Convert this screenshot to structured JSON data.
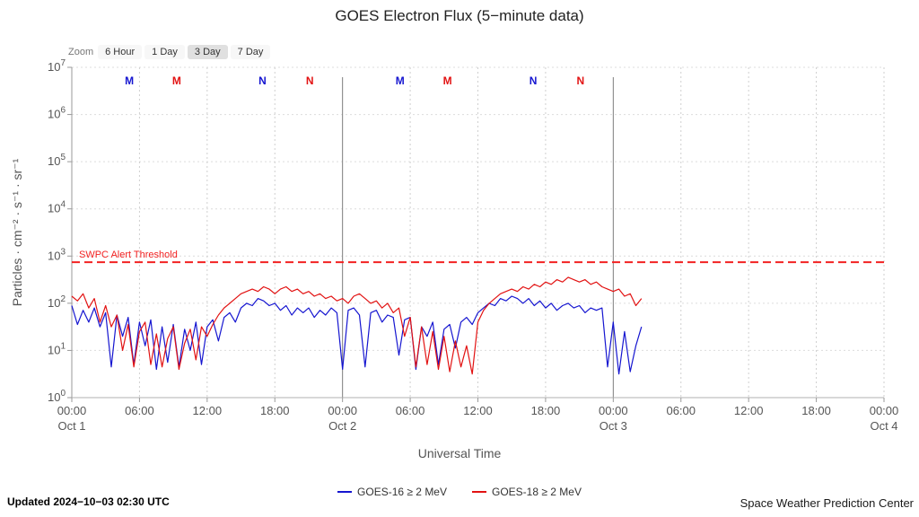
{
  "title": "GOES Electron Flux (5−minute data)",
  "zoom": {
    "label": "Zoom",
    "buttons": [
      "6 Hour",
      "1 Day",
      "3 Day",
      "7 Day"
    ],
    "active": "3 Day"
  },
  "footer": {
    "updated": "Updated 2024−10−03 02:30 UTC",
    "source": "Space Weather Prediction Center"
  },
  "chart_data": {
    "type": "line",
    "title": "GOES Electron Flux (5−minute data)",
    "xlabel": "Universal Time",
    "ylabel": "Particles · cm⁻² · s⁻¹ · sr⁻¹",
    "x_unit": "hours since Oct 1 00:00 UTC",
    "xlim": [
      0,
      72
    ],
    "ylog_range": [
      0,
      7
    ],
    "y_scale": "log10, labels are 10^exponent",
    "grid": true,
    "legend_position": "bottom-center",
    "x_ticks": [
      {
        "t": 0,
        "time": "00:00",
        "date": "Oct 1"
      },
      {
        "t": 6,
        "time": "06:00"
      },
      {
        "t": 12,
        "time": "12:00"
      },
      {
        "t": 18,
        "time": "18:00"
      },
      {
        "t": 24,
        "time": "00:00",
        "date": "Oct 2"
      },
      {
        "t": 30,
        "time": "06:00"
      },
      {
        "t": 36,
        "time": "12:00"
      },
      {
        "t": 42,
        "time": "18:00"
      },
      {
        "t": 48,
        "time": "00:00",
        "date": "Oct 3"
      },
      {
        "t": 54,
        "time": "06:00"
      },
      {
        "t": 60,
        "time": "12:00"
      },
      {
        "t": 66,
        "time": "18:00"
      },
      {
        "t": 72,
        "time": "00:00",
        "date": "Oct 4"
      }
    ],
    "y_tick_exponents": [
      0,
      1,
      2,
      3,
      4,
      5,
      6,
      7
    ],
    "day_lines_t": [
      24,
      48
    ],
    "threshold": {
      "label": "SWPC Alert Threshold",
      "log10_value": 2.87,
      "color": "#f22222"
    },
    "satellite_markers": [
      {
        "t": 5.1,
        "letter": "M",
        "series": "GOES-16",
        "color": "#1515d0"
      },
      {
        "t": 9.3,
        "letter": "M",
        "series": "GOES-18",
        "color": "#e21212"
      },
      {
        "t": 16.9,
        "letter": "N",
        "series": "GOES-16",
        "color": "#1515d0"
      },
      {
        "t": 21.1,
        "letter": "N",
        "series": "GOES-18",
        "color": "#e21212"
      },
      {
        "t": 29.1,
        "letter": "M",
        "series": "GOES-16",
        "color": "#1515d0"
      },
      {
        "t": 33.3,
        "letter": "M",
        "series": "GOES-18",
        "color": "#e21212"
      },
      {
        "t": 40.9,
        "letter": "N",
        "series": "GOES-16",
        "color": "#1515d0"
      },
      {
        "t": 45.1,
        "letter": "N",
        "series": "GOES-18",
        "color": "#e21212"
      }
    ],
    "series": [
      {
        "name": "GOES-16 ≥ 2 MeV",
        "color": "#1515d0",
        "t_start": 0,
        "t_step": 0.5,
        "log10_values": [
          1.95,
          1.55,
          1.85,
          1.6,
          1.9,
          1.5,
          1.8,
          0.65,
          1.75,
          1.3,
          1.7,
          0.7,
          1.6,
          1.1,
          1.65,
          0.6,
          1.5,
          0.75,
          1.55,
          0.65,
          1.45,
          1.0,
          1.6,
          0.7,
          1.5,
          1.65,
          1.2,
          1.7,
          1.8,
          1.6,
          1.9,
          2.0,
          1.95,
          2.1,
          2.05,
          1.95,
          2.0,
          1.85,
          1.95,
          1.75,
          1.9,
          1.8,
          1.9,
          1.7,
          1.85,
          1.75,
          1.9,
          1.8,
          0.6,
          1.85,
          1.9,
          1.75,
          0.65,
          1.8,
          1.85,
          1.6,
          1.75,
          1.7,
          0.9,
          1.65,
          1.7,
          0.6,
          1.5,
          1.3,
          1.6,
          0.7,
          1.45,
          1.55,
          1.05,
          1.6,
          1.7,
          1.55,
          1.8,
          1.9,
          2.0,
          1.95,
          2.1,
          2.05,
          2.15,
          2.1,
          2.0,
          2.1,
          1.95,
          2.05,
          1.9,
          2.0,
          1.85,
          1.95,
          2.0,
          1.9,
          1.95,
          1.8,
          1.9,
          1.85,
          1.9,
          0.65,
          1.6,
          0.5,
          1.4,
          0.55,
          1.1,
          1.5
        ]
      },
      {
        "name": "GOES-18 ≥ 2 MeV",
        "color": "#e21212",
        "t_start": 0,
        "t_step": 0.5,
        "log10_values": [
          2.15,
          2.05,
          2.2,
          1.9,
          2.1,
          1.6,
          1.95,
          1.5,
          1.75,
          1.0,
          1.55,
          0.65,
          1.4,
          1.6,
          0.7,
          1.35,
          0.65,
          1.25,
          1.5,
          0.6,
          1.15,
          1.45,
          0.8,
          1.5,
          1.3,
          1.55,
          1.75,
          1.9,
          2.0,
          2.1,
          2.2,
          2.25,
          2.3,
          2.25,
          2.35,
          2.3,
          2.2,
          2.3,
          2.35,
          2.25,
          2.3,
          2.2,
          2.25,
          2.15,
          2.2,
          2.1,
          2.15,
          2.05,
          2.1,
          2.0,
          2.15,
          2.2,
          2.1,
          2.0,
          2.05,
          1.9,
          2.0,
          1.8,
          1.9,
          1.3,
          1.7,
          0.65,
          1.5,
          0.7,
          1.4,
          0.6,
          1.3,
          0.55,
          1.2,
          0.65,
          1.1,
          0.5,
          1.6,
          1.85,
          2.0,
          2.1,
          2.2,
          2.25,
          2.3,
          2.25,
          2.35,
          2.3,
          2.4,
          2.35,
          2.45,
          2.4,
          2.5,
          2.45,
          2.55,
          2.5,
          2.45,
          2.5,
          2.4,
          2.45,
          2.35,
          2.3,
          2.25,
          2.3,
          2.15,
          2.2,
          1.95,
          2.1
        ]
      }
    ],
    "legend": [
      "GOES-16 ≥ 2 MeV",
      "GOES-18 ≥ 2 MeV"
    ]
  }
}
